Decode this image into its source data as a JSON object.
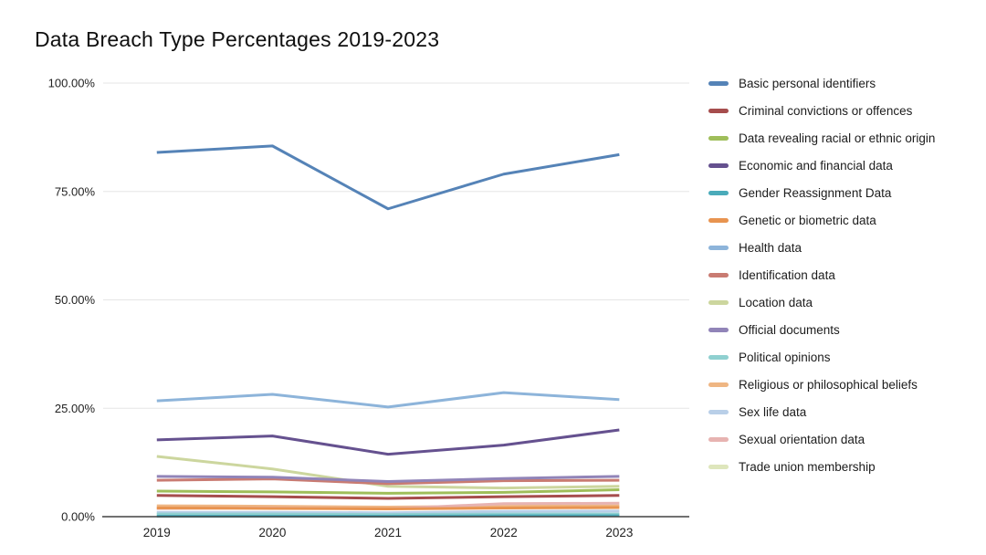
{
  "chart_data": {
    "type": "line",
    "title": "Data Breach Type Percentages 2019-2023",
    "xlabel": "",
    "ylabel": "",
    "categories": [
      "2019",
      "2020",
      "2021",
      "2022",
      "2023"
    ],
    "y_ticks": [
      "100.00%",
      "75.00%",
      "50.00%",
      "25.00%",
      "0.00%"
    ],
    "ylim": [
      0,
      100
    ],
    "grid": "horizontal",
    "legend_position": "right",
    "gridline_color": "#e6e6e6",
    "axis_line_color": "#424242",
    "series": [
      {
        "name": "Basic personal identifiers",
        "color": "#5583b7",
        "values": [
          84.0,
          85.5,
          71.0,
          79.0,
          83.5
        ]
      },
      {
        "name": "Criminal convictions or offences",
        "color": "#a64d4d",
        "values": [
          4.9,
          4.6,
          4.2,
          4.6,
          4.9
        ]
      },
      {
        "name": "Data revealing racial or ethnic origin",
        "color": "#9fbe5a",
        "values": [
          5.9,
          5.7,
          5.4,
          5.6,
          6.2
        ]
      },
      {
        "name": "Economic and financial data",
        "color": "#65518f",
        "values": [
          17.7,
          18.6,
          14.4,
          16.5,
          20.0
        ]
      },
      {
        "name": "Gender Reassignment Data",
        "color": "#4aabba",
        "values": [
          0.1,
          0.1,
          0.1,
          0.2,
          0.2
        ]
      },
      {
        "name": "Genetic or biometric data",
        "color": "#e89450",
        "values": [
          2.0,
          1.9,
          1.8,
          2.0,
          2.1
        ]
      },
      {
        "name": "Health data",
        "color": "#8db4da",
        "values": [
          26.7,
          28.2,
          25.3,
          28.6,
          27.0
        ]
      },
      {
        "name": "Identification data",
        "color": "#c97b72",
        "values": [
          8.4,
          8.7,
          7.6,
          8.3,
          8.4
        ]
      },
      {
        "name": "Location data",
        "color": "#ccd69e",
        "values": [
          13.9,
          11.0,
          7.0,
          6.6,
          7.0
        ]
      },
      {
        "name": "Official documents",
        "color": "#9184b8",
        "values": [
          9.3,
          9.1,
          8.1,
          8.8,
          9.3
        ]
      },
      {
        "name": "Political opinions",
        "color": "#8fd0d0",
        "values": [
          0.6,
          0.6,
          0.5,
          0.6,
          0.6
        ]
      },
      {
        "name": "Religious or philosophical beliefs",
        "color": "#efb683",
        "values": [
          2.5,
          2.4,
          2.2,
          2.4,
          2.5
        ]
      },
      {
        "name": "Sex life data",
        "color": "#b9cfe8",
        "values": [
          1.0,
          1.0,
          0.9,
          1.2,
          1.3
        ]
      },
      {
        "name": "Sexual orientation data",
        "color": "#e7b3b1",
        "values": [
          1.9,
          2.0,
          1.8,
          3.0,
          3.1
        ]
      },
      {
        "name": "Trade union membership",
        "color": "#dee6bc",
        "values": [
          0.4,
          0.4,
          0.3,
          0.4,
          0.5
        ]
      }
    ]
  }
}
